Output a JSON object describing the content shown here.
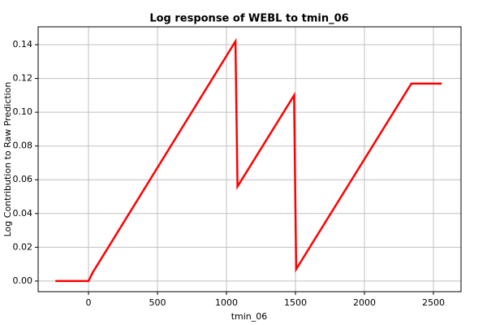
{
  "chart_data": {
    "type": "line",
    "title": "Log response of WEBL to tmin_06",
    "x_label": "tmin_06",
    "y_label": "Log Contribution to Raw Prediction",
    "x": [
      -240,
      0,
      30,
      1065,
      1080,
      1490,
      1505,
      2340,
      2560
    ],
    "series": [
      {
        "name": "WEBL",
        "color": "#ff0000",
        "values": [
          0,
          0,
          0.005,
          0.142,
          0.056,
          0.11,
          0.007,
          0.117,
          0.117
        ]
      }
    ],
    "xlim": [
      -365,
      2700
    ],
    "ylim": [
      -0.0063,
      0.1506
    ],
    "xticks": [
      0,
      500,
      1000,
      1500,
      2000,
      2500
    ],
    "yticks": [
      {
        "value": 0,
        "label": "0.00"
      },
      {
        "value": 0.02,
        "label": "0.02"
      },
      {
        "value": 0.04,
        "label": "0.04"
      },
      {
        "value": 0.06,
        "label": "0.06"
      },
      {
        "value": 0.08,
        "label": "0.08"
      },
      {
        "value": 0.1,
        "label": "0.10"
      },
      {
        "value": 0.12,
        "label": "0.12"
      },
      {
        "value": 0.14,
        "label": "0.14"
      }
    ],
    "grid": true
  }
}
